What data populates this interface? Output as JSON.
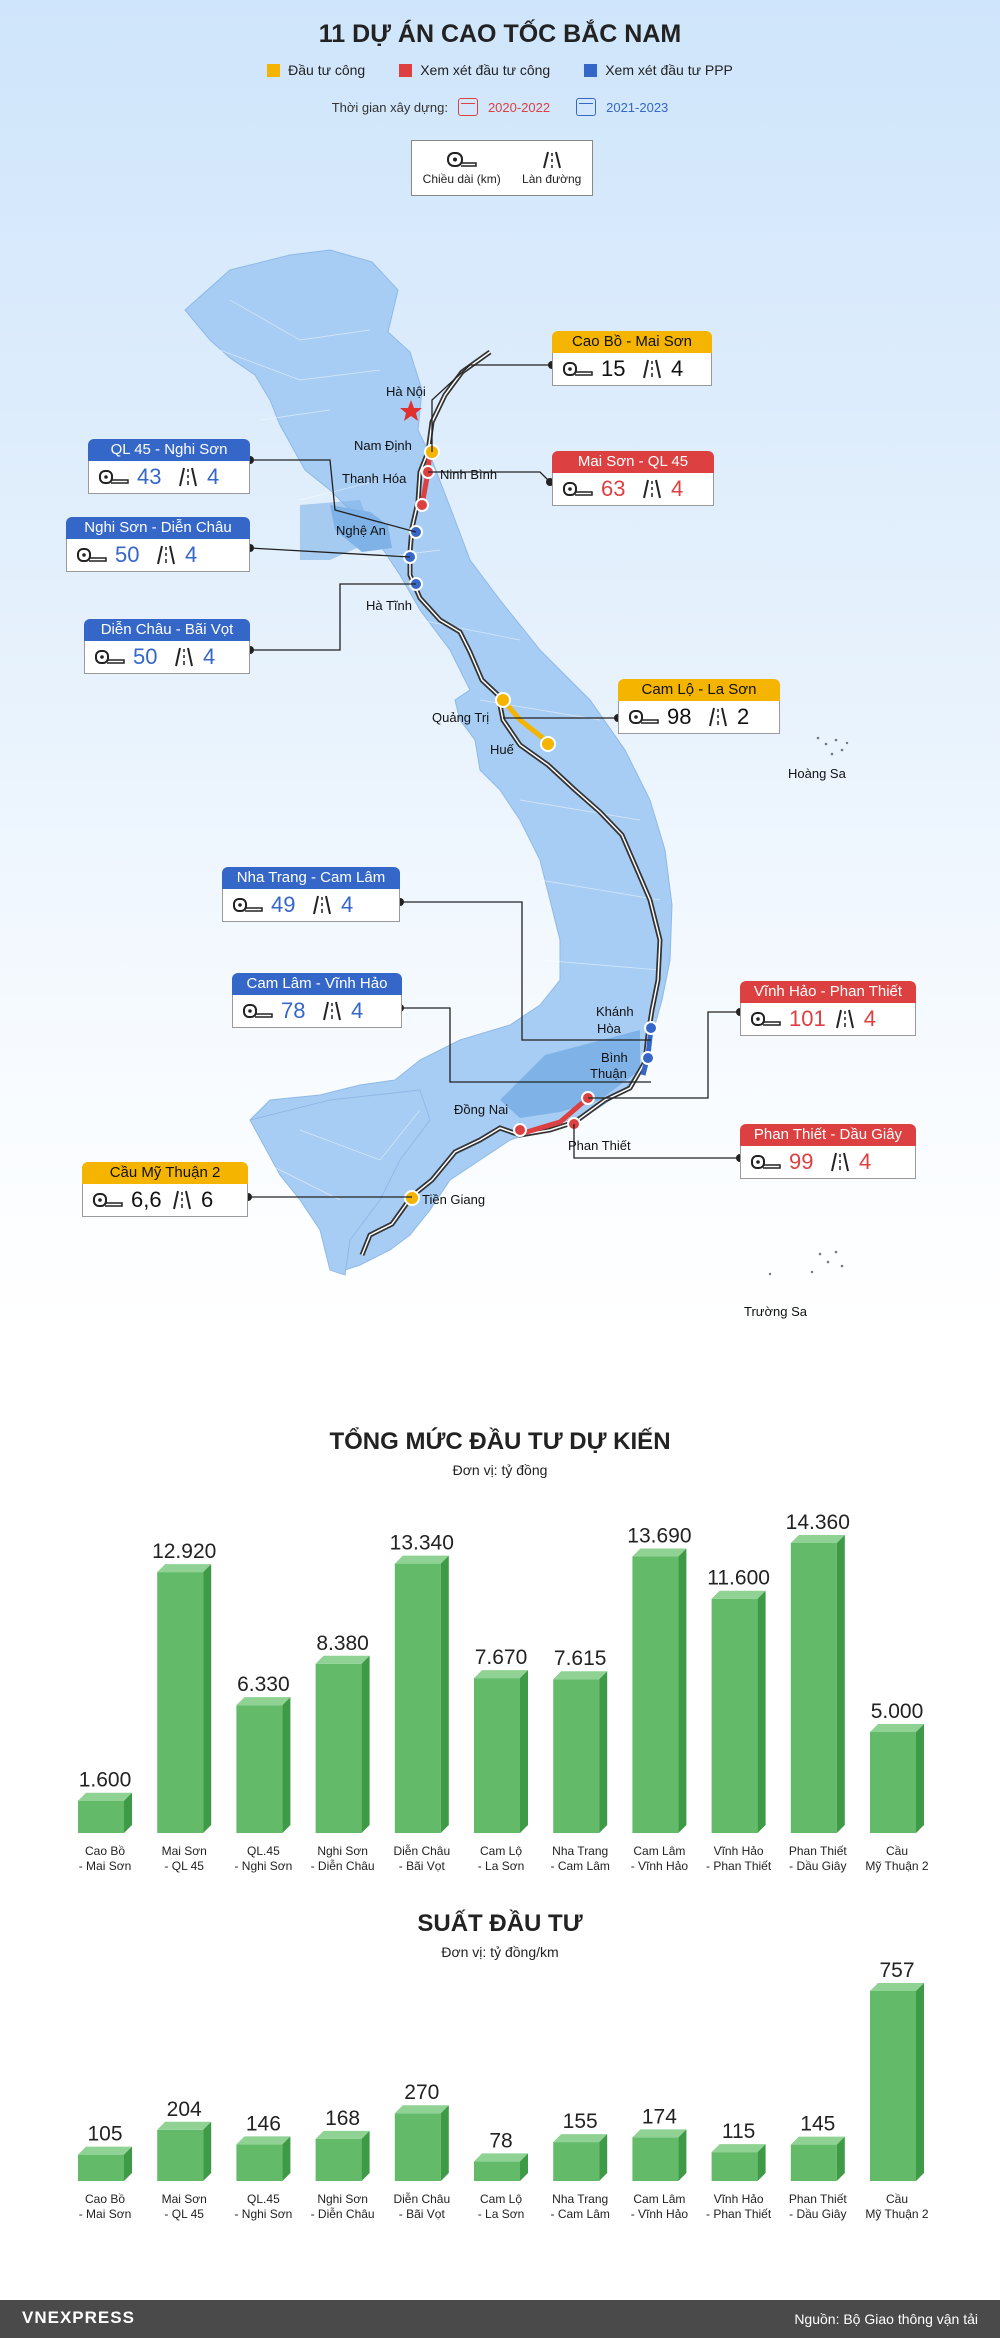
{
  "header": {
    "title": "11 DỰ ÁN CAO TỐC BẮC NAM",
    "legend": [
      {
        "label": "Đầu tư công",
        "color": "#f4b400"
      },
      {
        "label": "Xem xét đầu tư công",
        "color": "#dc4040"
      },
      {
        "label": "Xem xét đầu tư PPP",
        "color": "#3567c9"
      }
    ],
    "timeline_label": "Thời gian xây dựng:",
    "period_red": "2020-2022",
    "period_blue": "2021-2023",
    "key_length": "Chiều dài (km)",
    "key_lanes": "Làn đường"
  },
  "colors": {
    "yellow": "#f4b400",
    "red": "#dc4040",
    "blue": "#3567c9",
    "bar": "#63bb6a",
    "map": "#a7cdf4"
  },
  "map": {
    "places": [
      "Hà Nội",
      "Nam Định",
      "Ninh Bình",
      "Thanh Hóa",
      "Nghệ An",
      "Hà Tĩnh",
      "Quảng Trị",
      "Huế",
      "Hoàng Sa",
      "Khánh",
      "Hòa",
      "Bình",
      "Thuận",
      "Đồng Nai",
      "Phan Thiết",
      "Tiền Giang",
      "Trường Sa"
    ]
  },
  "projects": [
    {
      "name": "Cao Bồ - Mai Sơn",
      "length": "15",
      "lanes": "4",
      "type": "yellow"
    },
    {
      "name": "Mai Sơn - QL 45",
      "length": "63",
      "lanes": "4",
      "type": "red"
    },
    {
      "name": "QL 45 - Nghi Sơn",
      "length": "43",
      "lanes": "4",
      "type": "blue"
    },
    {
      "name": "Nghi Sơn - Diễn Châu",
      "length": "50",
      "lanes": "4",
      "type": "blue"
    },
    {
      "name": "Diễn Châu - Bãi Vọt",
      "length": "50",
      "lanes": "4",
      "type": "blue"
    },
    {
      "name": "Cam Lộ - La Sơn",
      "length": "98",
      "lanes": "2",
      "type": "yellow"
    },
    {
      "name": "Nha Trang - Cam Lâm",
      "length": "49",
      "lanes": "4",
      "type": "blue"
    },
    {
      "name": "Cam Lâm - Vĩnh Hảo",
      "length": "78",
      "lanes": "4",
      "type": "blue"
    },
    {
      "name": "Vĩnh Hảo - Phan Thiết",
      "length": "101",
      "lanes": "4",
      "type": "red"
    },
    {
      "name": "Phan Thiết - Dầu Giây",
      "length": "99",
      "lanes": "4",
      "type": "red"
    },
    {
      "name": "Cầu Mỹ Thuận 2",
      "length": "6,6",
      "lanes": "6",
      "type": "yellow"
    }
  ],
  "chart_data": [
    {
      "type": "bar",
      "title": "TỔNG MỨC ĐẦU TƯ DỰ KIẾN",
      "subtitle": "Đơn vị: tỷ đồng",
      "categories": [
        [
          "Cao Bồ",
          "- Mai Sơn"
        ],
        [
          "Mai Sơn",
          "- QL 45"
        ],
        [
          "QL.45",
          "- Nghi Sơn"
        ],
        [
          "Nghi Sơn",
          "- Diễn Châu"
        ],
        [
          "Diễn Châu",
          "- Bãi Vọt"
        ],
        [
          "Cam Lộ",
          "- La Sơn"
        ],
        [
          "Nha Trang",
          "- Cam Lâm"
        ],
        [
          "Cam Lâm",
          "- Vĩnh Hảo"
        ],
        [
          "Vĩnh Hảo",
          "- Phan Thiết"
        ],
        [
          "Phan Thiết",
          "- Dầu Giây"
        ],
        [
          "Cầu",
          "Mỹ Thuận 2"
        ]
      ],
      "values": [
        1600,
        12920,
        6330,
        8380,
        13340,
        7670,
        7615,
        13690,
        11600,
        14360,
        5000
      ],
      "value_labels": [
        "1.600",
        "12.920",
        "6.330",
        "8.380",
        "13.340",
        "7.670",
        "7.615",
        "13.690",
        "11.600",
        "14.360",
        "5.000"
      ]
    },
    {
      "type": "bar",
      "title": "SUẤT ĐẦU TƯ",
      "subtitle": "Đơn vị: tỷ đồng/km",
      "categories": [
        [
          "Cao Bồ",
          "- Mai Sơn"
        ],
        [
          "Mai Sơn",
          "- QL 45"
        ],
        [
          "QL.45",
          "- Nghi Sơn"
        ],
        [
          "Nghi Sơn",
          "- Diễn Châu"
        ],
        [
          "Diễn Châu",
          "- Bãi Vọt"
        ],
        [
          "Cam Lộ",
          "- La Sơn"
        ],
        [
          "Nha Trang",
          "- Cam Lâm"
        ],
        [
          "Cam Lâm",
          "- Vĩnh Hảo"
        ],
        [
          "Vĩnh Hảo",
          "- Phan Thiết"
        ],
        [
          "Phan Thiết",
          "- Dầu Giây"
        ],
        [
          "Cầu",
          "Mỹ Thuận 2"
        ]
      ],
      "values": [
        105,
        204,
        146,
        168,
        270,
        78,
        155,
        174,
        115,
        145,
        757
      ],
      "value_labels": [
        "105",
        "204",
        "146",
        "168",
        "270",
        "78",
        "155",
        "174",
        "115",
        "145",
        "757"
      ]
    }
  ],
  "footer": {
    "logo": "VNEXPRESS",
    "source": "Nguồn: Bộ Giao thông vận tải"
  }
}
